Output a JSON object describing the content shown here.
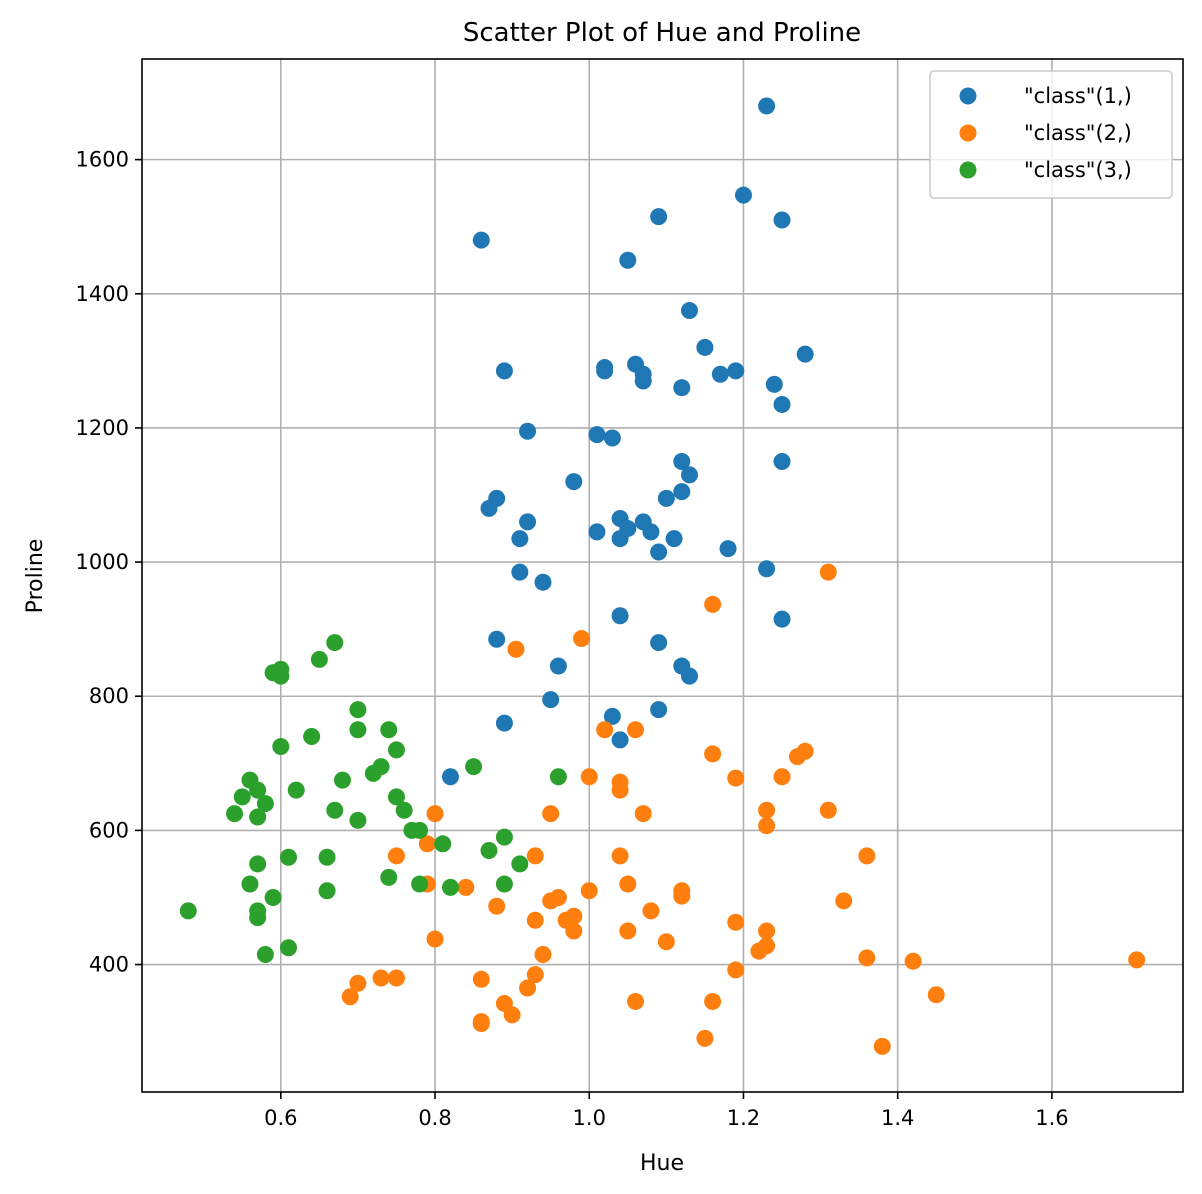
{
  "chart_data": {
    "type": "scatter",
    "title": "Scatter Plot of Hue and Proline",
    "xlabel": "Hue",
    "ylabel": "Proline",
    "xlim": [
      0.42,
      1.77
    ],
    "ylim": [
      210,
      1750
    ],
    "xticks": [
      0.6,
      0.8,
      1.0,
      1.2,
      1.4,
      1.6
    ],
    "xtick_labels": [
      "0.6",
      "0.8",
      "1.0",
      "1.2",
      "1.4",
      "1.6"
    ],
    "yticks": [
      400,
      600,
      800,
      1000,
      1200,
      1400,
      1600
    ],
    "ytick_labels": [
      "400",
      "600",
      "800",
      "1000",
      "1200",
      "1400",
      "1600"
    ],
    "grid": true,
    "legend_position": "top-right",
    "series": [
      {
        "name": "\"class\"(1,)",
        "color": "#1f77b4",
        "points": [
          [
            1.23,
            1680
          ],
          [
            1.2,
            1547
          ],
          [
            1.25,
            1510
          ],
          [
            1.09,
            1515
          ],
          [
            0.86,
            1480
          ],
          [
            1.05,
            1450
          ],
          [
            1.13,
            1375
          ],
          [
            1.15,
            1320
          ],
          [
            1.28,
            1310
          ],
          [
            1.06,
            1295
          ],
          [
            1.02,
            1290
          ],
          [
            1.02,
            1285
          ],
          [
            0.89,
            1285
          ],
          [
            1.07,
            1280
          ],
          [
            1.17,
            1280
          ],
          [
            1.19,
            1285
          ],
          [
            1.07,
            1270
          ],
          [
            1.24,
            1265
          ],
          [
            1.12,
            1260
          ],
          [
            1.25,
            1235
          ],
          [
            0.92,
            1195
          ],
          [
            1.01,
            1190
          ],
          [
            1.03,
            1185
          ],
          [
            1.12,
            1150
          ],
          [
            1.25,
            1150
          ],
          [
            1.13,
            1130
          ],
          [
            0.98,
            1120
          ],
          [
            1.12,
            1105
          ],
          [
            0.88,
            1095
          ],
          [
            1.1,
            1095
          ],
          [
            0.87,
            1080
          ],
          [
            1.04,
            1065
          ],
          [
            0.92,
            1060
          ],
          [
            1.07,
            1060
          ],
          [
            1.05,
            1050
          ],
          [
            1.01,
            1045
          ],
          [
            1.08,
            1045
          ],
          [
            1.04,
            1035
          ],
          [
            0.91,
            1035
          ],
          [
            1.11,
            1035
          ],
          [
            1.18,
            1020
          ],
          [
            1.09,
            1015
          ],
          [
            1.23,
            990
          ],
          [
            0.91,
            985
          ],
          [
            0.94,
            970
          ],
          [
            1.04,
            920
          ],
          [
            1.25,
            915
          ],
          [
            0.88,
            885
          ],
          [
            1.09,
            880
          ],
          [
            0.96,
            845
          ],
          [
            1.12,
            845
          ],
          [
            1.13,
            830
          ],
          [
            0.95,
            795
          ],
          [
            1.09,
            780
          ],
          [
            1.03,
            770
          ],
          [
            0.89,
            760
          ],
          [
            1.04,
            735
          ],
          [
            0.82,
            680
          ]
        ]
      },
      {
        "name": "\"class\"(2,)",
        "color": "#ff7f0e",
        "points": [
          [
            1.31,
            985
          ],
          [
            1.16,
            937
          ],
          [
            0.99,
            886
          ],
          [
            0.905,
            870
          ],
          [
            1.02,
            750
          ],
          [
            1.06,
            750
          ],
          [
            1.28,
            718
          ],
          [
            1.16,
            714
          ],
          [
            1.27,
            710
          ],
          [
            1.0,
            680
          ],
          [
            1.25,
            680
          ],
          [
            1.19,
            678
          ],
          [
            1.04,
            672
          ],
          [
            1.04,
            660
          ],
          [
            1.31,
            630
          ],
          [
            1.23,
            630
          ],
          [
            0.8,
            625
          ],
          [
            1.07,
            625
          ],
          [
            0.95,
            625
          ],
          [
            1.23,
            607
          ],
          [
            0.79,
            580
          ],
          [
            0.75,
            562
          ],
          [
            0.93,
            562
          ],
          [
            1.04,
            562
          ],
          [
            1.36,
            562
          ],
          [
            1.05,
            520
          ],
          [
            0.79,
            520
          ],
          [
            0.84,
            515
          ],
          [
            1.0,
            510
          ],
          [
            1.12,
            510
          ],
          [
            1.12,
            502
          ],
          [
            0.96,
            500
          ],
          [
            0.95,
            495
          ],
          [
            1.33,
            495
          ],
          [
            0.88,
            487
          ],
          [
            1.08,
            480
          ],
          [
            0.98,
            472
          ],
          [
            0.97,
            466
          ],
          [
            0.93,
            466
          ],
          [
            1.19,
            463
          ],
          [
            0.98,
            450
          ],
          [
            1.05,
            450
          ],
          [
            1.23,
            450
          ],
          [
            0.8,
            438
          ],
          [
            1.1,
            434
          ],
          [
            1.23,
            428
          ],
          [
            1.22,
            420
          ],
          [
            0.94,
            415
          ],
          [
            1.36,
            410
          ],
          [
            1.71,
            407
          ],
          [
            1.42,
            405
          ],
          [
            1.19,
            392
          ],
          [
            0.93,
            385
          ],
          [
            0.73,
            380
          ],
          [
            0.75,
            380
          ],
          [
            0.86,
            378
          ],
          [
            0.7,
            372
          ],
          [
            0.92,
            365
          ],
          [
            1.45,
            355
          ],
          [
            0.69,
            352
          ],
          [
            1.06,
            345
          ],
          [
            1.16,
            345
          ],
          [
            0.89,
            342
          ],
          [
            0.9,
            325
          ],
          [
            0.86,
            315
          ],
          [
            0.86,
            312
          ],
          [
            1.15,
            290
          ],
          [
            1.38,
            278
          ]
        ]
      },
      {
        "name": "\"class\"(3,)",
        "color": "#2ca02c",
        "points": [
          [
            0.67,
            880
          ],
          [
            0.65,
            855
          ],
          [
            0.6,
            840
          ],
          [
            0.59,
            835
          ],
          [
            0.6,
            830
          ],
          [
            0.7,
            780
          ],
          [
            0.7,
            750
          ],
          [
            0.74,
            750
          ],
          [
            0.64,
            740
          ],
          [
            0.6,
            725
          ],
          [
            0.75,
            720
          ],
          [
            0.73,
            695
          ],
          [
            0.85,
            695
          ],
          [
            0.72,
            685
          ],
          [
            0.96,
            680
          ],
          [
            0.56,
            675
          ],
          [
            0.68,
            675
          ],
          [
            0.57,
            660
          ],
          [
            0.62,
            660
          ],
          [
            0.55,
            650
          ],
          [
            0.75,
            650
          ],
          [
            0.58,
            640
          ],
          [
            0.67,
            630
          ],
          [
            0.76,
            630
          ],
          [
            0.54,
            625
          ],
          [
            0.57,
            620
          ],
          [
            0.7,
            615
          ],
          [
            0.77,
            600
          ],
          [
            0.78,
            600
          ],
          [
            0.89,
            590
          ],
          [
            0.81,
            580
          ],
          [
            0.87,
            570
          ],
          [
            0.61,
            560
          ],
          [
            0.66,
            560
          ],
          [
            0.57,
            550
          ],
          [
            0.91,
            550
          ],
          [
            0.74,
            530
          ],
          [
            0.56,
            520
          ],
          [
            0.78,
            520
          ],
          [
            0.89,
            520
          ],
          [
            0.82,
            515
          ],
          [
            0.66,
            510
          ],
          [
            0.59,
            500
          ],
          [
            0.48,
            480
          ],
          [
            0.57,
            480
          ],
          [
            0.57,
            470
          ],
          [
            0.61,
            425
          ],
          [
            0.58,
            415
          ]
        ]
      }
    ]
  }
}
